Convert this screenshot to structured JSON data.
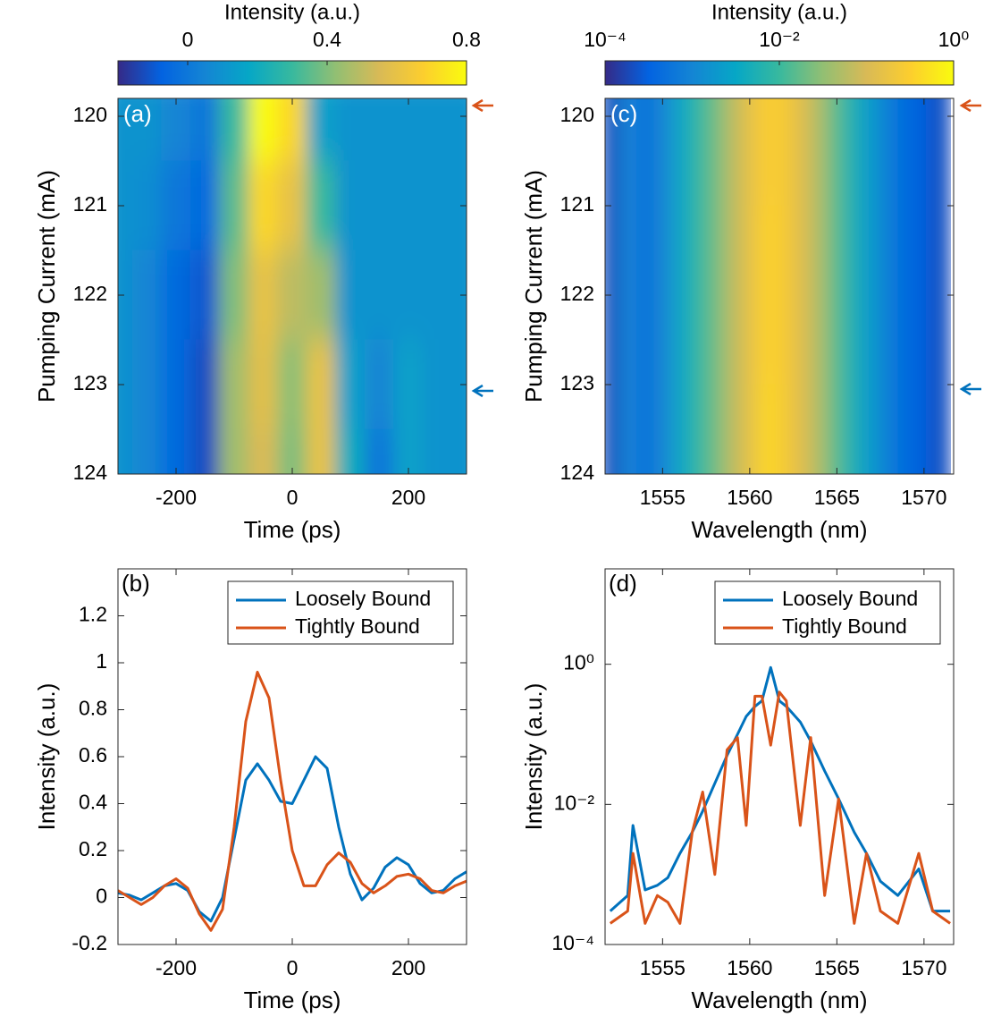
{
  "chart_data": [
    {
      "type": "heatmap",
      "panel_label": "(a)",
      "xlabel": "Time (ps)",
      "ylabel": "Pumping Current (mA)",
      "x": [
        -300,
        -250,
        -200,
        -150,
        -100,
        -50,
        0,
        50,
        100,
        150,
        200,
        250,
        300
      ],
      "y": [
        120,
        121,
        122,
        123,
        124
      ],
      "values": [
        [
          0.1,
          0.1,
          0.05,
          0.0,
          0.3,
          0.85,
          0.7,
          0.15,
          0.1,
          0.1,
          0.1,
          0.1,
          0.1
        ],
        [
          0.1,
          0.08,
          0.0,
          -0.05,
          0.35,
          0.7,
          0.6,
          0.3,
          0.1,
          0.1,
          0.1,
          0.1,
          0.1
        ],
        [
          0.1,
          0.05,
          -0.05,
          -0.1,
          0.4,
          0.6,
          0.5,
          0.45,
          0.1,
          0.1,
          0.1,
          0.1,
          0.1
        ],
        [
          0.1,
          0.05,
          -0.05,
          -0.12,
          0.45,
          0.58,
          0.42,
          0.6,
          0.15,
          0.05,
          0.15,
          0.1,
          0.1
        ],
        [
          0.1,
          0.05,
          -0.05,
          -0.12,
          0.45,
          0.55,
          0.4,
          0.6,
          0.2,
          0.0,
          0.15,
          0.1,
          0.1
        ]
      ],
      "xlim": [
        -300,
        300
      ],
      "xticks": [
        -200,
        0,
        200
      ],
      "ylim": [
        119.8,
        124
      ],
      "yticks": [
        120,
        121,
        122,
        123,
        124
      ],
      "yreverse": true,
      "colormap": "parula",
      "colorbar": {
        "label": "Intensity (a.u.)",
        "clim": [
          -0.2,
          0.8
        ],
        "ticks": [
          0,
          0.4,
          0.8
        ]
      }
    },
    {
      "type": "line",
      "panel_label": "(b)",
      "xlabel": "Time (ps)",
      "ylabel": "Intensity (a.u.)",
      "x": [
        -300,
        -280,
        -260,
        -240,
        -220,
        -200,
        -180,
        -160,
        -140,
        -120,
        -100,
        -80,
        -60,
        -40,
        -20,
        0,
        20,
        40,
        60,
        80,
        100,
        120,
        140,
        160,
        180,
        200,
        220,
        240,
        260,
        280,
        300
      ],
      "series": [
        {
          "name": "Loosely Bound",
          "color": "#0072bd",
          "values": [
            0.02,
            0.01,
            -0.01,
            0.02,
            0.05,
            0.06,
            0.03,
            -0.06,
            -0.1,
            0.0,
            0.25,
            0.5,
            0.57,
            0.5,
            0.41,
            0.4,
            0.5,
            0.6,
            0.55,
            0.3,
            0.1,
            -0.01,
            0.04,
            0.13,
            0.17,
            0.14,
            0.06,
            0.02,
            0.03,
            0.08,
            0.11
          ]
        },
        {
          "name": "Tightly Bound",
          "color": "#d95319",
          "values": [
            0.03,
            0.0,
            -0.03,
            0.0,
            0.05,
            0.08,
            0.04,
            -0.07,
            -0.14,
            -0.05,
            0.3,
            0.75,
            0.96,
            0.85,
            0.5,
            0.2,
            0.05,
            0.05,
            0.14,
            0.19,
            0.15,
            0.06,
            0.02,
            0.05,
            0.09,
            0.1,
            0.08,
            0.03,
            0.02,
            0.05,
            0.07
          ]
        }
      ],
      "xlim": [
        -300,
        300
      ],
      "xticks": [
        -200,
        0,
        200
      ],
      "ylim": [
        -0.2,
        1.4
      ],
      "yticks": [
        -0.2,
        0,
        0.2,
        0.4,
        0.6,
        0.8,
        1,
        1.2
      ],
      "legend": "upper right"
    },
    {
      "type": "heatmap",
      "panel_label": "(c)",
      "xlabel": "Wavelength (nm)",
      "ylabel": "Pumping Current (mA)",
      "x": [
        1552,
        1553,
        1554,
        1555,
        1556,
        1557,
        1558,
        1559,
        1560,
        1561,
        1562,
        1563,
        1564,
        1565,
        1566,
        1567,
        1568,
        1569,
        1570,
        1571
      ],
      "y": [
        120,
        122,
        124
      ],
      "values": [
        [
          0.0002,
          0.001,
          0.0005,
          0.001,
          0.003,
          0.008,
          0.02,
          0.06,
          0.15,
          0.3,
          0.25,
          0.12,
          0.05,
          0.015,
          0.005,
          0.002,
          0.0008,
          0.0004,
          0.0003,
          0.0002
        ],
        [
          0.0002,
          0.001,
          0.0005,
          0.001,
          0.003,
          0.008,
          0.02,
          0.06,
          0.15,
          0.35,
          0.25,
          0.12,
          0.05,
          0.015,
          0.005,
          0.002,
          0.0008,
          0.0004,
          0.0003,
          0.0002
        ],
        [
          0.0002,
          0.001,
          0.0005,
          0.001,
          0.003,
          0.008,
          0.02,
          0.06,
          0.15,
          0.4,
          0.25,
          0.12,
          0.05,
          0.015,
          0.005,
          0.002,
          0.0008,
          0.0004,
          0.0003,
          0.0002
        ]
      ],
      "xlim": [
        1551.7,
        1571.7
      ],
      "xticks": [
        1555,
        1560,
        1565,
        1570
      ],
      "ylim": [
        119.8,
        124
      ],
      "yticks": [
        120,
        121,
        122,
        123,
        124
      ],
      "yreverse": true,
      "colormap": "parula",
      "colorbar": {
        "label": "Intensity (a.u.)",
        "clim": [
          0.0001,
          1
        ],
        "scale": "log",
        "ticks": [
          {
            "value": 0.0001,
            "label": "10⁻⁴"
          },
          {
            "value": 0.01,
            "label": "10⁻²"
          },
          {
            "value": 1,
            "label": "10⁰"
          }
        ]
      }
    },
    {
      "type": "line",
      "panel_label": "(d)",
      "xlabel": "Wavelength (nm)",
      "ylabel": "Intensity (a.u.)",
      "x": [
        1552,
        1553,
        1553.3,
        1554,
        1554.7,
        1555.3,
        1556,
        1556.7,
        1557.3,
        1558,
        1558.7,
        1559.3,
        1559.8,
        1560.3,
        1560.7,
        1561.2,
        1561.7,
        1562.1,
        1562.9,
        1563.5,
        1564.3,
        1565.1,
        1566,
        1566.7,
        1567.5,
        1568.5,
        1569.7,
        1570.5,
        1571.5
      ],
      "series": [
        {
          "name": "Loosely Bound",
          "color": "#0072bd",
          "values": [
            0.0003,
            0.0005,
            0.005,
            0.0006,
            0.0007,
            0.0009,
            0.002,
            0.004,
            0.008,
            0.02,
            0.05,
            0.1,
            0.18,
            0.25,
            0.3,
            0.9,
            0.3,
            0.25,
            0.15,
            0.08,
            0.03,
            0.012,
            0.004,
            0.002,
            0.0008,
            0.0005,
            0.0012,
            0.0003,
            0.0003
          ]
        },
        {
          "name": "Tightly Bound",
          "color": "#d95319",
          "values": [
            0.0002,
            0.0003,
            0.002,
            0.0002,
            0.0005,
            0.0004,
            0.0002,
            0.004,
            0.015,
            0.001,
            0.06,
            0.09,
            0.005,
            0.35,
            0.35,
            0.07,
            0.4,
            0.3,
            0.005,
            0.09,
            0.0005,
            0.012,
            0.0002,
            0.002,
            0.0003,
            0.0002,
            0.002,
            0.0003,
            0.0002
          ]
        }
      ],
      "xlim": [
        1551.7,
        1571.7
      ],
      "xticks": [
        1555,
        1560,
        1565,
        1570
      ],
      "ylim": [
        0.0001,
        23
      ],
      "yscale": "log",
      "yticks": [
        {
          "value": 0.0001,
          "label": "10⁻⁴"
        },
        {
          "value": 0.01,
          "label": "10⁻²"
        },
        {
          "value": 1,
          "label": "10⁰"
        }
      ],
      "legend": "upper right"
    }
  ]
}
